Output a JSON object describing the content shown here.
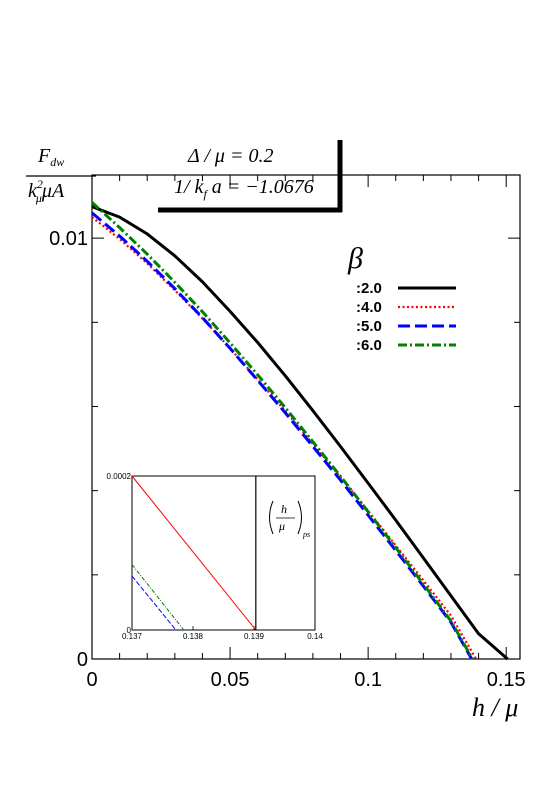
{
  "chart_data": {
    "type": "line",
    "title": "",
    "annotation": {
      "line1": "Δ / μ = 0.2",
      "line2_prefix": "1/ k",
      "line2_sub": "f",
      "line2_suffix": " a = −1.0676"
    },
    "ylabel": {
      "num_main": "F",
      "num_sub": "dw",
      "den_k": "k",
      "den_sup": "2",
      "den_sub": "μ",
      "den_rest": "μA"
    },
    "xlabel": "h / μ",
    "xlim": [
      0,
      0.155
    ],
    "ylim": [
      0,
      0.0115
    ],
    "xticks": [
      {
        "value": 0,
        "label": "0"
      },
      {
        "value": 0.05,
        "label": "0.05"
      },
      {
        "value": 0.1,
        "label": "0.1"
      },
      {
        "value": 0.15,
        "label": "0.15"
      }
    ],
    "yticks": [
      {
        "value": 0,
        "label": "0"
      },
      {
        "value": 0.01,
        "label": "0.01"
      }
    ],
    "legend": {
      "title": "β",
      "placement": "top-right"
    },
    "series": [
      {
        "name": ":2.0",
        "color": "#000000",
        "dash": "solid",
        "x": [
          0,
          0.01,
          0.02,
          0.03,
          0.04,
          0.05,
          0.06,
          0.07,
          0.08,
          0.09,
          0.1,
          0.11,
          0.12,
          0.13,
          0.14,
          0.1505
        ],
        "y": [
          0.01075,
          0.0105,
          0.0101,
          0.00958,
          0.00896,
          0.00826,
          0.00752,
          0.00673,
          0.0059,
          0.00505,
          0.00418,
          0.0033,
          0.0024,
          0.0015,
          0.0006,
          0.0
        ]
      },
      {
        "name": ":4.0",
        "color": "#ff0000",
        "dash": "dotted",
        "x": [
          0,
          0.01,
          0.02,
          0.03,
          0.04,
          0.05,
          0.06,
          0.07,
          0.08,
          0.09,
          0.1,
          0.11,
          0.12,
          0.13,
          0.1391
        ],
        "y": [
          0.0105,
          0.00998,
          0.0094,
          0.00876,
          0.00809,
          0.00738,
          0.00664,
          0.00589,
          0.00511,
          0.00432,
          0.00352,
          0.0027,
          0.00187,
          0.00103,
          0.0
        ]
      },
      {
        "name": ":5.0",
        "color": "#0000ff",
        "dash": "dashed",
        "x": [
          0,
          0.01,
          0.02,
          0.03,
          0.04,
          0.05,
          0.06,
          0.07,
          0.08,
          0.09,
          0.1,
          0.11,
          0.12,
          0.13,
          0.1375
        ],
        "y": [
          0.0106,
          0.01005,
          0.00945,
          0.0088,
          0.00811,
          0.00738,
          0.00662,
          0.00585,
          0.00505,
          0.00425,
          0.00342,
          0.00258,
          0.00173,
          0.00087,
          0.0
        ]
      },
      {
        "name": ":6.0",
        "color": "#008000",
        "dash": "dashdot",
        "x": [
          0,
          0.01,
          0.02,
          0.03,
          0.04,
          0.05,
          0.06,
          0.07,
          0.08,
          0.09,
          0.1,
          0.11,
          0.12,
          0.13,
          0.1378
        ],
        "y": [
          0.01085,
          0.01025,
          0.00962,
          0.00895,
          0.00825,
          0.00751,
          0.00675,
          0.00597,
          0.00516,
          0.00434,
          0.0035,
          0.00265,
          0.00178,
          0.0009,
          0.0
        ]
      }
    ],
    "inset": {
      "xlim": [
        0.137,
        0.14
      ],
      "ylim": [
        0,
        0.0002
      ],
      "xticks": [
        {
          "value": 0.137,
          "label": "0.137"
        },
        {
          "value": 0.138,
          "label": "0.138"
        },
        {
          "value": 0.139,
          "label": "0.139"
        },
        {
          "value": 0.14,
          "label": "0.14"
        }
      ],
      "yticks": [
        {
          "value": 0,
          "label": "0"
        },
        {
          "value": 0.0002,
          "label": "0.0002"
        }
      ],
      "vline": {
        "x": 0.13903,
        "color": "#000000"
      },
      "vline_label": {
        "num": "h",
        "den": "μ",
        "sub": "ps"
      },
      "series": [
        {
          "color": "#ff0000",
          "dash": "solid",
          "x": [
            0.137,
            0.13903
          ],
          "y": [
            0.0002,
            0.0
          ]
        },
        {
          "color": "#008000",
          "dash": "dashdot",
          "x": [
            0.137,
            0.13785
          ],
          "y": [
            8.5e-05,
            0.0
          ]
        },
        {
          "color": "#0000ff",
          "dash": "dashed",
          "x": [
            0.137,
            0.13772
          ],
          "y": [
            7e-05,
            0.0
          ]
        }
      ]
    }
  }
}
